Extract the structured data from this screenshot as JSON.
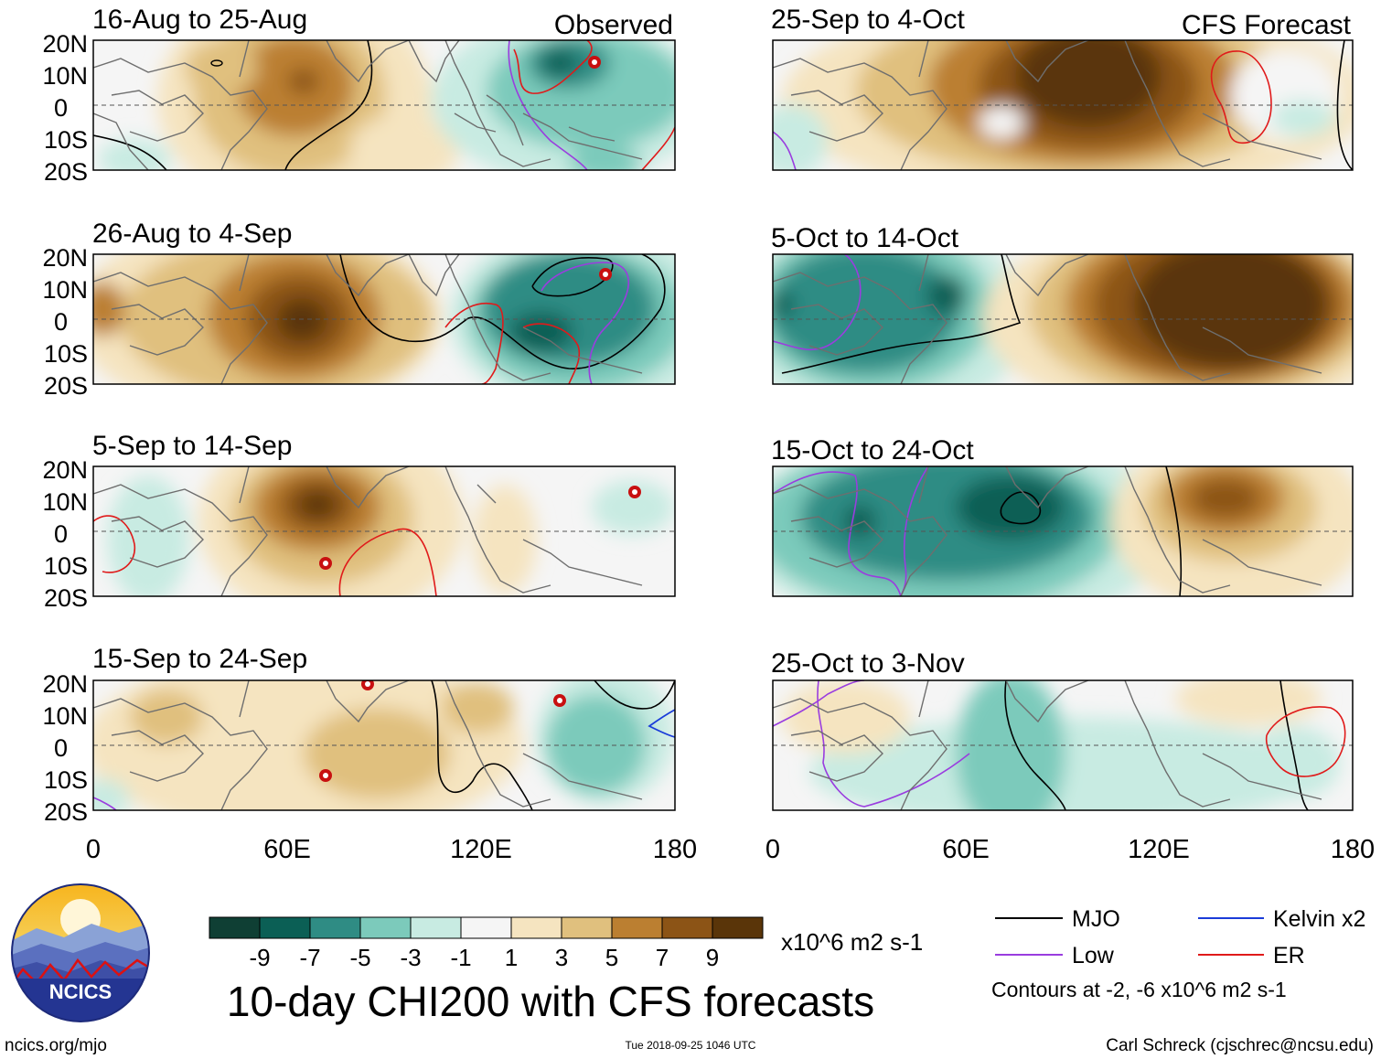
{
  "figure": {
    "title": "10-day CHI200 with CFS forecasts",
    "observed_label": "Observed",
    "forecast_label": "CFS Forecast",
    "units": "x10^6 m2 s-1",
    "contours_note": "Contours at -2, -6 x10^6 m2 s-1",
    "site": "ncics.org/mjo",
    "timestamp": "Tue 2018-09-25 1046 UTC",
    "credit": "Carl Schreck (cjschrec@ncsu.edu)",
    "logo_text": "NCICS"
  },
  "axes": {
    "lat_labels": [
      "20N",
      "10N",
      "0",
      "10S",
      "20S"
    ],
    "lon_labels": [
      "0",
      "60E",
      "120E",
      "180"
    ]
  },
  "legend": {
    "colorbar_ticks": [
      "-9",
      "-7",
      "-5",
      "-3",
      "-1",
      "1",
      "3",
      "5",
      "7",
      "9"
    ],
    "colors": [
      "#0f3f34",
      "#0b5f55",
      "#2f8c84",
      "#7ccabb",
      "#c8ebe2",
      "#f5f5f5",
      "#f5e4c0",
      "#e0c07e",
      "#bb7f31",
      "#8c5416",
      "#5a3509"
    ],
    "lines": [
      {
        "label": "MJO",
        "color": "#000000"
      },
      {
        "label": "Kelvin x2",
        "color": "#1a3cd9"
      },
      {
        "label": "Low",
        "color": "#9a3ddf"
      },
      {
        "label": "ER",
        "color": "#e01a1a"
      }
    ]
  },
  "panels": [
    {
      "id": "obs1",
      "title": "16-Aug to 25-Aug"
    },
    {
      "id": "obs2",
      "title": "26-Aug to 4-Sep"
    },
    {
      "id": "obs3",
      "title": "5-Sep to 14-Sep"
    },
    {
      "id": "obs4",
      "title": "15-Sep to 24-Sep"
    },
    {
      "id": "fc1",
      "title": "25-Sep to 4-Oct"
    },
    {
      "id": "fc2",
      "title": "5-Oct to 14-Oct"
    },
    {
      "id": "fc3",
      "title": "15-Oct to 24-Oct"
    },
    {
      "id": "fc4",
      "title": "25-Oct to 3-Nov"
    }
  ]
}
